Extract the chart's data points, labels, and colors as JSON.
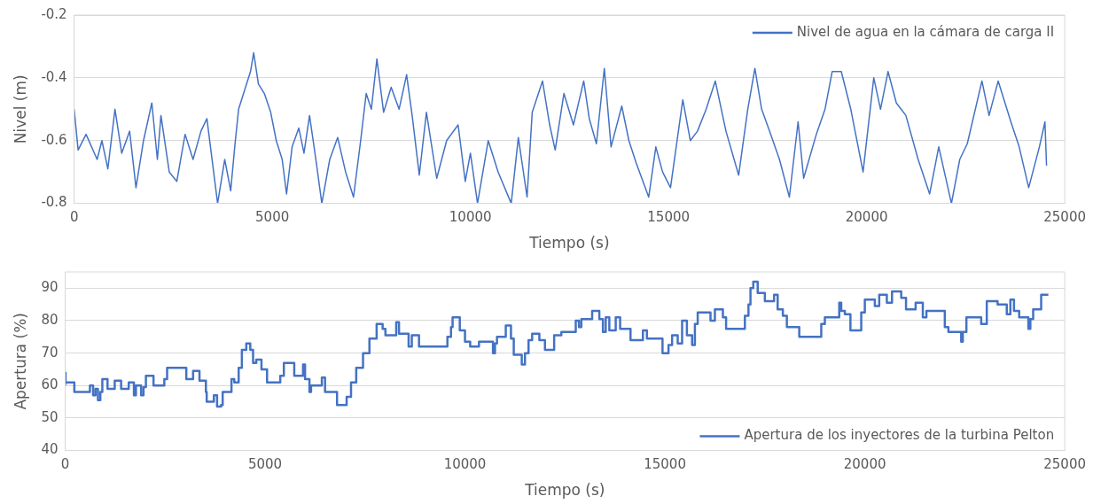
{
  "chart_data": [
    {
      "type": "line",
      "xlabel": "Tiempo (s)",
      "ylabel": "Nivel (m)",
      "xlim": [
        0,
        25000
      ],
      "xticks": [
        0,
        5000,
        10000,
        15000,
        20000,
        25000
      ],
      "ylim": [
        -0.8,
        -0.2
      ],
      "yticks": [
        -0.8,
        -0.6,
        -0.4,
        -0.2
      ],
      "grid": "y",
      "legend": "top right",
      "marker": "none",
      "x": [
        0,
        100,
        300,
        580,
        700,
        850,
        1030,
        1200,
        1400,
        1560,
        1750,
        1960,
        2100,
        2190,
        2400,
        2590,
        2800,
        3000,
        3200,
        3350,
        3500,
        3620,
        3800,
        3950,
        4060,
        4150,
        4300,
        4450,
        4530,
        4650,
        4800,
        4960,
        5100,
        5250,
        5360,
        5500,
        5670,
        5800,
        5940,
        6100,
        6250,
        6450,
        6650,
        6850,
        7050,
        7230,
        7370,
        7500,
        7640,
        7810,
        8000,
        8200,
        8390,
        8530,
        8710,
        8890,
        9150,
        9400,
        9690,
        9870,
        10000,
        10180,
        10450,
        10700,
        11030,
        11210,
        11430,
        11560,
        11820,
        12000,
        12140,
        12360,
        12600,
        12860,
        13000,
        13180,
        13380,
        13550,
        13820,
        14000,
        14180,
        14500,
        14680,
        14850,
        15050,
        15360,
        15550,
        15730,
        15950,
        16180,
        16450,
        16770,
        17000,
        17180,
        17350,
        17550,
        17800,
        18050,
        18270,
        18410,
        18730,
        18950,
        19130,
        19360,
        19600,
        19910,
        20180,
        20350,
        20540,
        20750,
        20990,
        21300,
        21590,
        21820,
        22140,
        22350,
        22540,
        22910,
        23090,
        23320,
        23640,
        23850,
        24090,
        24360,
        24500,
        24540
      ],
      "series": [
        {
          "name": "Nivel de agua en la cámara de carga II",
          "color": "#4472c4",
          "values": [
            -0.5,
            -0.63,
            -0.58,
            -0.66,
            -0.6,
            -0.69,
            -0.5,
            -0.64,
            -0.57,
            -0.75,
            -0.6,
            -0.48,
            -0.66,
            -0.52,
            -0.7,
            -0.73,
            -0.58,
            -0.66,
            -0.57,
            -0.53,
            -0.68,
            -0.8,
            -0.66,
            -0.76,
            -0.61,
            -0.5,
            -0.44,
            -0.38,
            -0.32,
            -0.42,
            -0.45,
            -0.51,
            -0.6,
            -0.66,
            -0.77,
            -0.62,
            -0.56,
            -0.64,
            -0.52,
            -0.66,
            -0.8,
            -0.66,
            -0.59,
            -0.7,
            -0.78,
            -0.6,
            -0.45,
            -0.5,
            -0.34,
            -0.51,
            -0.43,
            -0.5,
            -0.39,
            -0.52,
            -0.71,
            -0.51,
            -0.72,
            -0.6,
            -0.55,
            -0.73,
            -0.64,
            -0.8,
            -0.6,
            -0.7,
            -0.8,
            -0.59,
            -0.78,
            -0.51,
            -0.41,
            -0.55,
            -0.63,
            -0.45,
            -0.55,
            -0.41,
            -0.53,
            -0.61,
            -0.37,
            -0.62,
            -0.49,
            -0.6,
            -0.67,
            -0.78,
            -0.62,
            -0.7,
            -0.75,
            -0.47,
            -0.6,
            -0.57,
            -0.5,
            -0.41,
            -0.57,
            -0.71,
            -0.5,
            -0.37,
            -0.5,
            -0.57,
            -0.66,
            -0.78,
            -0.54,
            -0.72,
            -0.58,
            -0.5,
            -0.38,
            -0.38,
            -0.5,
            -0.7,
            -0.4,
            -0.5,
            -0.38,
            -0.48,
            -0.52,
            -0.66,
            -0.77,
            -0.62,
            -0.8,
            -0.66,
            -0.61,
            -0.41,
            -0.52,
            -0.41,
            -0.54,
            -0.62,
            -0.75,
            -0.62,
            -0.54,
            -0.68
          ]
        }
      ]
    },
    {
      "type": "step",
      "xlabel": "Tiempo (s)",
      "ylabel": "Apertura (%)",
      "xlim": [
        0,
        25000
      ],
      "xticks": [
        0,
        5000,
        10000,
        15000,
        20000,
        25000
      ],
      "ylim": [
        40,
        95
      ],
      "yticks": [
        40,
        50,
        60,
        70,
        80,
        90
      ],
      "grid": "y",
      "legend": "bottom right",
      "marker": "none",
      "x": [
        0,
        10,
        230,
        620,
        700,
        760,
        820,
        880,
        930,
        1060,
        1240,
        1400,
        1590,
        1720,
        1770,
        1900,
        1960,
        2020,
        2210,
        2480,
        2550,
        3030,
        3200,
        3360,
        3520,
        3540,
        3720,
        3800,
        3900,
        3940,
        4160,
        4230,
        4340,
        4420,
        4530,
        4630,
        4700,
        4780,
        4910,
        5050,
        5380,
        5470,
        5730,
        5950,
        6000,
        6110,
        6150,
        6420,
        6500,
        6800,
        7040,
        7150,
        7280,
        7450,
        7610,
        7790,
        7940,
        8010,
        8280,
        8350,
        8590,
        8670,
        8850,
        9560,
        9650,
        9690,
        9870,
        10000,
        10130,
        10350,
        10700,
        10750,
        10800,
        11020,
        11150,
        11220,
        11420,
        11500,
        11590,
        11680,
        11860,
        12000,
        12230,
        12410,
        12770,
        12850,
        12910,
        13180,
        13360,
        13450,
        13520,
        13610,
        13770,
        13880,
        14140,
        14450,
        14550,
        14940,
        15090,
        15180,
        15320,
        15430,
        15550,
        15680,
        15750,
        15820,
        16140,
        16250,
        16450,
        16530,
        17000,
        17090,
        17140,
        17210,
        17320,
        17500,
        17730,
        17820,
        17950,
        18050,
        18360,
        18910,
        19000,
        19360,
        19410,
        19500,
        19640,
        19910,
        20000,
        20250,
        20360,
        20550,
        20680,
        20910,
        21030,
        21270,
        21450,
        21540,
        22000,
        22090,
        22410,
        22450,
        22540,
        22910,
        23050,
        23320,
        23550,
        23640,
        23730,
        23860,
        24090,
        24140,
        24210,
        24410,
        24590
      ],
      "series": [
        {
          "name": "Apertura de los inyectores de la turbina Pelton",
          "color": "#4472c4",
          "values": [
            60,
            64,
            61,
            58,
            60,
            57,
            59,
            55.5,
            58,
            62,
            59,
            61.5,
            59,
            61,
            57,
            60,
            57,
            59.5,
            63,
            60,
            62,
            65.5,
            62,
            64.5,
            61.5,
            58,
            55,
            57,
            53.5,
            54,
            58,
            62,
            61,
            65.5,
            71,
            73,
            71,
            67,
            68,
            65,
            61,
            63,
            67,
            63,
            66.5,
            62,
            58,
            60,
            62.5,
            58,
            54,
            56.5,
            61,
            65.5,
            70,
            74.5,
            79,
            77.5,
            75.5,
            79.5,
            76,
            72,
            75.5,
            72,
            75,
            78,
            81,
            77,
            73.5,
            72,
            73.5,
            70,
            73,
            75,
            78.5,
            74.5,
            69.5,
            66.5,
            70,
            74,
            76,
            74,
            71,
            75.5,
            76.5,
            80,
            78,
            80.5,
            83,
            80.5,
            76.5,
            81,
            77,
            81,
            77.5,
            74,
            77,
            74.5,
            70,
            72.5,
            75.5,
            73,
            80,
            75.5,
            72.5,
            79,
            82.5,
            80,
            83.5,
            81,
            77.5,
            81.5,
            85,
            90,
            92,
            88.5,
            86,
            88,
            83.5,
            81.5,
            78,
            75,
            79,
            81,
            85.5,
            83,
            82,
            77,
            82.5,
            86.5,
            84.5,
            88,
            85.5,
            89,
            87,
            83.5,
            85.5,
            81,
            83,
            78,
            76.5,
            73.5,
            76.5,
            81,
            79,
            86,
            85,
            82,
            86.5,
            83,
            81,
            77.5,
            80.5,
            83.5,
            88
          ]
        }
      ]
    }
  ]
}
